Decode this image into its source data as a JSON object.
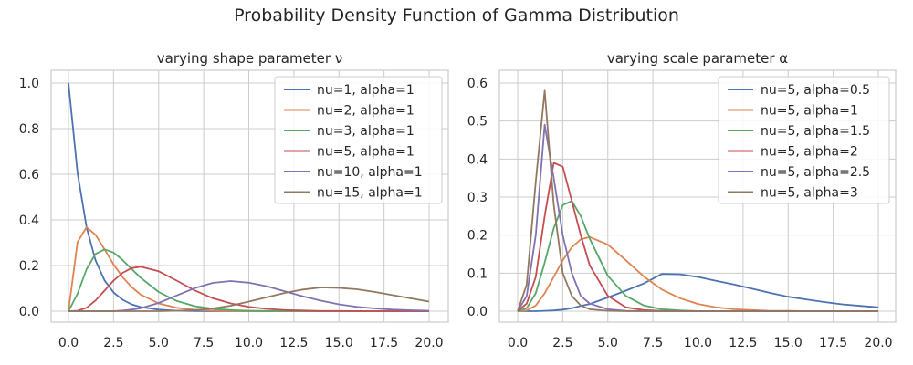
{
  "figure": {
    "title": "Probability Density Function of Gamma Distribution"
  },
  "chart_data": [
    {
      "type": "line",
      "title": "varying shape parameter ν",
      "xlabel": "",
      "ylabel": "",
      "xlim": [
        0,
        20
      ],
      "ylim": [
        0,
        1.0
      ],
      "x_ticks": [
        0,
        2.5,
        5,
        7.5,
        10,
        12.5,
        15,
        17.5,
        20
      ],
      "x_tick_labels": [
        "0.0",
        "2.5",
        "5.0",
        "7.5",
        "10.0",
        "12.5",
        "15.0",
        "17.5",
        "20.0"
      ],
      "y_ticks": [
        0,
        0.2,
        0.4,
        0.6,
        0.8,
        1.0
      ],
      "y_tick_labels": [
        "0.0",
        "0.2",
        "0.4",
        "0.6",
        "0.8",
        "1.0"
      ],
      "grid": true,
      "legend_position": "top-right",
      "x": [
        0,
        0.5,
        1,
        1.5,
        2,
        2.5,
        3,
        3.5,
        4,
        5,
        6,
        7,
        8,
        9,
        10,
        11,
        12,
        13,
        14,
        15,
        16,
        17,
        18,
        19,
        20
      ],
      "series": [
        {
          "name": "nu=1, alpha=1",
          "color": "#4c72b0",
          "values": [
            1.0,
            0.607,
            0.368,
            0.223,
            0.135,
            0.082,
            0.05,
            0.03,
            0.018,
            0.007,
            0.002,
            0.001,
            0,
            0,
            0,
            0,
            0,
            0,
            0,
            0,
            0,
            0,
            0,
            0,
            0
          ]
        },
        {
          "name": "nu=2, alpha=1",
          "color": "#dd8452",
          "values": [
            0,
            0.303,
            0.368,
            0.335,
            0.271,
            0.205,
            0.149,
            0.106,
            0.073,
            0.034,
            0.015,
            0.006,
            0.003,
            0.001,
            0,
            0,
            0,
            0,
            0,
            0,
            0,
            0,
            0,
            0,
            0
          ]
        },
        {
          "name": "nu=3, alpha=1",
          "color": "#55a868",
          "values": [
            0,
            0.076,
            0.184,
            0.251,
            0.271,
            0.257,
            0.224,
            0.185,
            0.147,
            0.084,
            0.045,
            0.022,
            0.011,
            0.005,
            0.002,
            0.001,
            0,
            0,
            0,
            0,
            0,
            0,
            0,
            0,
            0
          ]
        },
        {
          "name": "nu=5, alpha=1",
          "color": "#c44e52",
          "values": [
            0,
            0.002,
            0.015,
            0.047,
            0.09,
            0.134,
            0.168,
            0.189,
            0.195,
            0.175,
            0.134,
            0.091,
            0.057,
            0.034,
            0.019,
            0.01,
            0.005,
            0.003,
            0.001,
            0.001,
            0,
            0,
            0,
            0,
            0
          ]
        },
        {
          "name": "nu=10, alpha=1",
          "color": "#8172b3",
          "values": [
            0,
            0,
            0,
            0,
            0,
            0,
            0.003,
            0.007,
            0.013,
            0.036,
            0.069,
            0.101,
            0.124,
            0.132,
            0.125,
            0.109,
            0.087,
            0.065,
            0.046,
            0.03,
            0.019,
            0.012,
            0.007,
            0.004,
            0.002
          ]
        },
        {
          "name": "nu=15, alpha=1",
          "color": "#937860",
          "values": [
            0,
            0,
            0,
            0,
            0,
            0,
            0,
            0,
            0,
            0,
            0.002,
            0.005,
            0.012,
            0.024,
            0.042,
            0.061,
            0.08,
            0.095,
            0.104,
            0.102,
            0.096,
            0.084,
            0.07,
            0.056,
            0.042
          ]
        }
      ]
    },
    {
      "type": "line",
      "title": "varying scale parameter α",
      "xlabel": "",
      "ylabel": "",
      "xlim": [
        0,
        20
      ],
      "ylim": [
        0,
        0.6
      ],
      "x_ticks": [
        0,
        2.5,
        5,
        7.5,
        10,
        12.5,
        15,
        17.5,
        20
      ],
      "x_tick_labels": [
        "0.0",
        "2.5",
        "5.0",
        "7.5",
        "10.0",
        "12.5",
        "15.0",
        "17.5",
        "20.0"
      ],
      "y_ticks": [
        0,
        0.1,
        0.2,
        0.3,
        0.4,
        0.5,
        0.6
      ],
      "y_tick_labels": [
        "0.0",
        "0.1",
        "0.2",
        "0.3",
        "0.4",
        "0.5",
        "0.6"
      ],
      "grid": true,
      "legend_position": "top-right",
      "x": [
        0,
        0.5,
        1,
        1.5,
        2,
        2.5,
        3,
        3.5,
        4,
        5,
        6,
        7,
        8,
        9,
        10,
        11,
        12,
        13,
        14,
        15,
        16,
        17,
        18,
        19,
        20
      ],
      "series": [
        {
          "name": "nu=5, alpha=0.5",
          "color": "#4c72b0",
          "values": [
            0,
            0,
            0,
            0.001,
            0.002,
            0.004,
            0.008,
            0.014,
            0.019,
            0.036,
            0.054,
            0.073,
            0.098,
            0.097,
            0.09,
            0.08,
            0.07,
            0.059,
            0.048,
            0.038,
            0.031,
            0.024,
            0.018,
            0.014,
            0.01
          ]
        },
        {
          "name": "nu=5, alpha=1",
          "color": "#dd8452",
          "values": [
            0,
            0.002,
            0.015,
            0.047,
            0.09,
            0.134,
            0.168,
            0.189,
            0.195,
            0.175,
            0.134,
            0.091,
            0.057,
            0.034,
            0.019,
            0.01,
            0.005,
            0.003,
            0.001,
            0.001,
            0,
            0,
            0,
            0,
            0
          ]
        },
        {
          "name": "nu=5, alpha=1.5",
          "color": "#55a868",
          "values": [
            0,
            0.008,
            0.047,
            0.128,
            0.218,
            0.279,
            0.29,
            0.25,
            0.19,
            0.093,
            0.04,
            0.015,
            0.005,
            0.002,
            0,
            0,
            0,
            0,
            0,
            0,
            0,
            0,
            0,
            0,
            0
          ]
        },
        {
          "name": "nu=5, alpha=2",
          "color": "#c44e52",
          "values": [
            0,
            0.02,
            0.09,
            0.25,
            0.39,
            0.38,
            0.29,
            0.2,
            0.12,
            0.04,
            0.01,
            0.003,
            0.001,
            0,
            0,
            0,
            0,
            0,
            0,
            0,
            0,
            0,
            0,
            0,
            0
          ]
        },
        {
          "name": "nu=5, alpha=2.5",
          "color": "#8172b3",
          "values": [
            0,
            0.04,
            0.2,
            0.49,
            0.35,
            0.2,
            0.1,
            0.04,
            0.02,
            0.005,
            0.001,
            0,
            0,
            0,
            0,
            0,
            0,
            0,
            0,
            0,
            0,
            0,
            0,
            0,
            0
          ]
        },
        {
          "name": "nu=5, alpha=3",
          "color": "#937860",
          "values": [
            0,
            0.07,
            0.34,
            0.58,
            0.28,
            0.1,
            0.04,
            0.015,
            0.005,
            0.001,
            0,
            0,
            0,
            0,
            0,
            0,
            0,
            0,
            0,
            0,
            0,
            0,
            0,
            0,
            0
          ]
        }
      ]
    }
  ]
}
